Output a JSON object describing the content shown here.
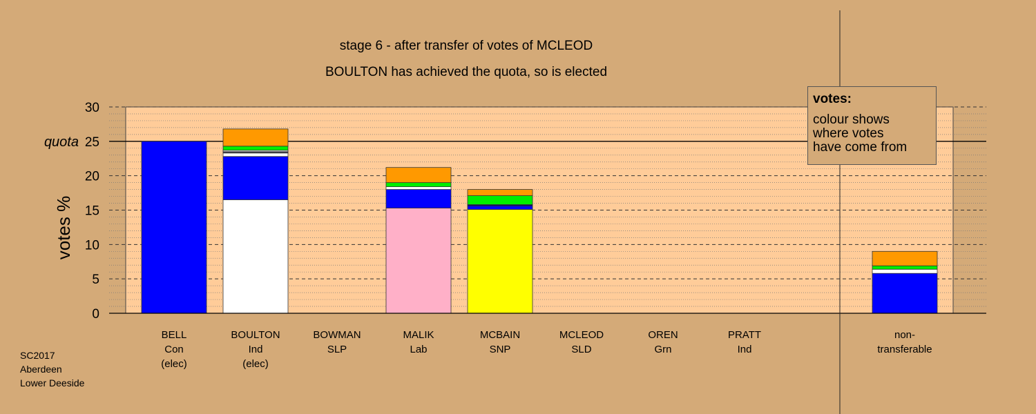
{
  "chart_data": {
    "type": "bar",
    "stacked": true,
    "title_lines": [
      "stage 6 - after transfer of votes of MCLEOD",
      "BOULTON has achieved the quota, so is elected"
    ],
    "ylabel": "votes %",
    "ylim": [
      0,
      30
    ],
    "yticks": [
      0,
      5,
      10,
      15,
      20,
      25,
      30
    ],
    "quota": 25,
    "quota_label": "quota",
    "grid": true,
    "colors": {
      "background": "#d4aa78",
      "plot_area": "#ffcc99",
      "con": "#0000ff",
      "ind": "#ffffff",
      "lab": "#ffb0c8",
      "snp": "#ffff00",
      "grn": "#00ee00",
      "sld": "#ff9900",
      "slp": "#cc0000"
    },
    "candidates": [
      {
        "name": "BELL",
        "party": "Con",
        "note": "(elec)",
        "segments": [
          {
            "source": "con",
            "value": 25.0
          }
        ]
      },
      {
        "name": "BOULTON",
        "party": "Ind",
        "note": "(elec)",
        "segments": [
          {
            "source": "ind",
            "value": 16.5
          },
          {
            "source": "con",
            "value": 6.3
          },
          {
            "source": "ind",
            "value": 0.5
          },
          {
            "source": "ind-pratt",
            "value": 0.1
          },
          {
            "source": "con-dark",
            "value": 0.1
          },
          {
            "source": "ind",
            "value": 0.2
          },
          {
            "source": "grn",
            "value": 0.6
          },
          {
            "source": "sld",
            "value": 2.5
          }
        ]
      },
      {
        "name": "BOWMAN",
        "party": "SLP",
        "note": "",
        "segments": []
      },
      {
        "name": "MALIK",
        "party": "Lab",
        "note": "",
        "segments": [
          {
            "source": "lab",
            "value": 15.3
          },
          {
            "source": "con",
            "value": 2.7
          },
          {
            "source": "ind",
            "value": 0.4
          },
          {
            "source": "grn",
            "value": 0.6
          },
          {
            "source": "sld",
            "value": 2.2
          }
        ]
      },
      {
        "name": "MCBAIN",
        "party": "SNP",
        "note": "",
        "segments": [
          {
            "source": "snp",
            "value": 15.1
          },
          {
            "source": "con",
            "value": 0.5
          },
          {
            "source": "con-dark",
            "value": 0.2
          },
          {
            "source": "grn",
            "value": 1.3
          },
          {
            "source": "sld",
            "value": 0.9
          }
        ]
      },
      {
        "name": "MCLEOD",
        "party": "SLD",
        "note": "",
        "segments": []
      },
      {
        "name": "OREN",
        "party": "Grn",
        "note": "",
        "segments": []
      },
      {
        "name": "PRATT",
        "party": "Ind",
        "note": "",
        "segments": []
      }
    ],
    "non_transferable": {
      "label_lines": [
        "non-",
        "transferable"
      ],
      "segments": [
        {
          "source": "con",
          "value": 5.8
        },
        {
          "source": "ind",
          "value": 0.6
        },
        {
          "source": "grn",
          "value": 0.5
        },
        {
          "source": "sld",
          "value": 2.1
        }
      ]
    }
  },
  "legend": {
    "heading": "votes:",
    "lines": [
      "colour shows",
      "where votes",
      "have come from"
    ]
  },
  "source": {
    "lines": [
      "SC2017",
      "Aberdeen",
      "Lower Deeside"
    ]
  }
}
